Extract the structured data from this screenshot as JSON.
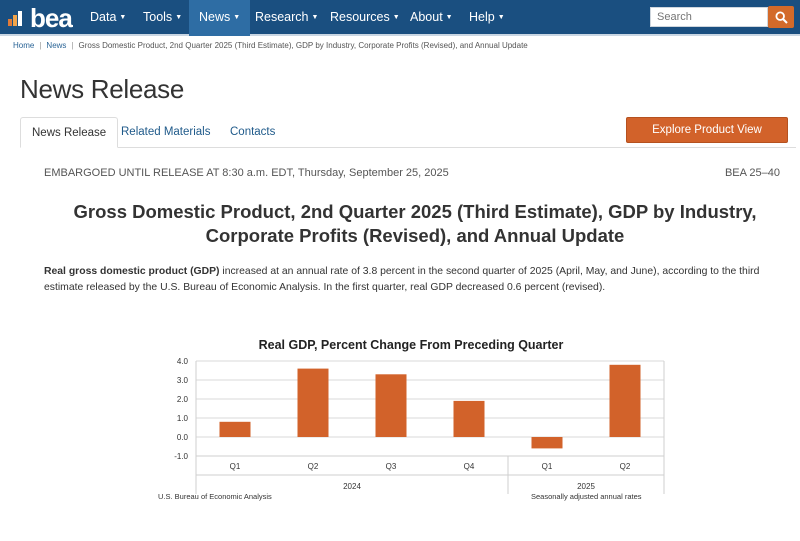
{
  "nav": {
    "logo_text": "bea",
    "items": [
      {
        "label": "Data",
        "active": false
      },
      {
        "label": "Tools",
        "active": false
      },
      {
        "label": "News",
        "active": true
      },
      {
        "label": "Research",
        "active": false
      },
      {
        "label": "Resources",
        "active": false
      },
      {
        "label": "About",
        "active": false
      },
      {
        "label": "Help",
        "active": false
      }
    ],
    "search_placeholder": "Search",
    "search_icon": "search-icon",
    "caret_icon": "chevron-down-icon",
    "colors": {
      "bar": "#1a4f80",
      "active": "#2e6da4",
      "accent": "#d36a2a"
    }
  },
  "breadcrumb": [
    "Home",
    "News",
    "Gross Domestic Product, 2nd Quarter 2025 (Third Estimate), GDP by Industry, Corporate Profits (Revised), and Annual Update"
  ],
  "page_title": "News Release",
  "tabs": [
    "News Release",
    "Related Materials",
    "Contacts"
  ],
  "explore_button": "Explore Product View",
  "embargo": "EMBARGOED UNTIL RELEASE AT 8:30 a.m. EDT, Thursday, September 25, 2025",
  "release_no": "BEA 25–40",
  "headline": "Gross Domestic Product, 2nd Quarter 2025 (Third Estimate), GDP by Industry, Corporate Profits (Revised), and Annual Update",
  "lead": {
    "bold": "Real gross domestic product (GDP)",
    "rest": " increased at an annual rate of 3.8 percent in the second quarter of 2025 (April, May, and June), according to the third estimate released by the U.S. Bureau of Economic Analysis. In the first quarter, real GDP decreased 0.6 percent (revised)."
  },
  "chart_data": {
    "type": "bar",
    "title": "Real GDP, Percent Change From Preceding Quarter",
    "categories": [
      "Q1",
      "Q2",
      "Q3",
      "Q4",
      "Q1",
      "Q2"
    ],
    "groups": [
      {
        "label": "2024",
        "count": 4
      },
      {
        "label": "2025",
        "count": 2
      }
    ],
    "values": [
      0.8,
      3.6,
      3.3,
      1.9,
      -0.6,
      3.8
    ],
    "ylim": [
      -1.0,
      4.0
    ],
    "yticks": [
      "4.0",
      "3.0",
      "2.0",
      "1.0",
      "0.0",
      "-1.0"
    ],
    "ytick_values": [
      4,
      3,
      2,
      1,
      0,
      -1
    ],
    "grid": true,
    "bar_color": "#d2622a",
    "source": "U.S. Bureau of Economic Analysis",
    "note": "Seasonally adjusted annual rates"
  }
}
